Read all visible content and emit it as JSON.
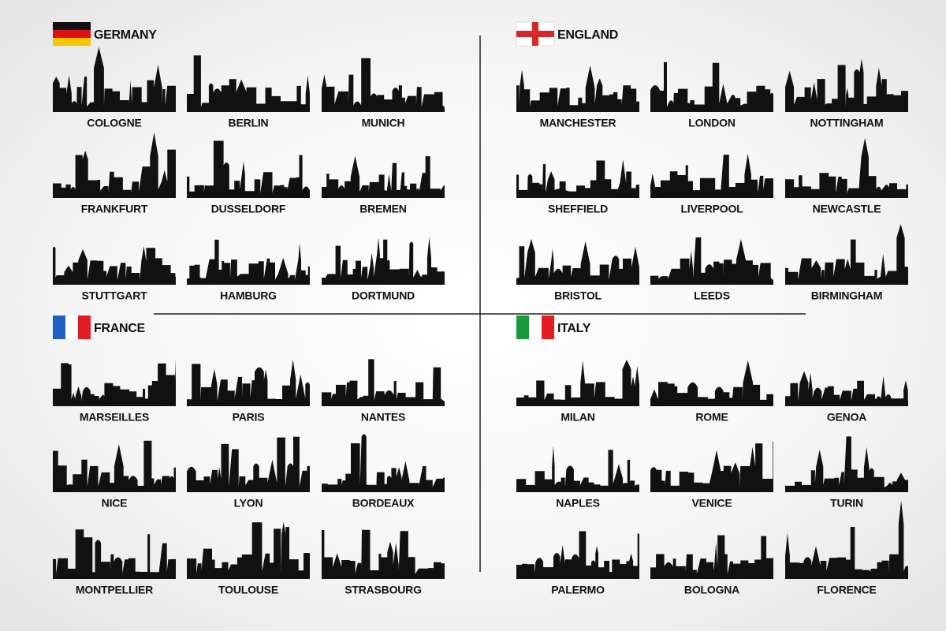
{
  "sections": [
    {
      "title": "GERMANY",
      "cities": [
        "COLOGNE",
        "BERLIN",
        "MUNICH",
        "FRANKFURT",
        "DUSSELDORF",
        "BREMEN",
        "STUTTGART",
        "HAMBURG",
        "DORTMUND"
      ]
    },
    {
      "title": "ENGLAND",
      "cities": [
        "MANCHESTER",
        "LONDON",
        "NOTTINGHAM",
        "SHEFFIELD",
        "LIVERPOOL",
        "NEWCASTLE",
        "BRISTOL",
        "LEEDS",
        "BIRMINGHAM"
      ]
    },
    {
      "title": "FRANCE",
      "cities": [
        "MARSEILLES",
        "PARIS",
        "NANTES",
        "NICE",
        "LYON",
        "BORDEAUX",
        "MONTPELLIER",
        "TOULOUSE",
        "STRASBOURG"
      ]
    },
    {
      "title": "ITALY",
      "cities": [
        "MILAN",
        "ROME",
        "GENOA",
        "NAPLES",
        "VENICE",
        "TURIN",
        "PALERMO",
        "BOLOGNA",
        "FLORENCE"
      ]
    }
  ]
}
